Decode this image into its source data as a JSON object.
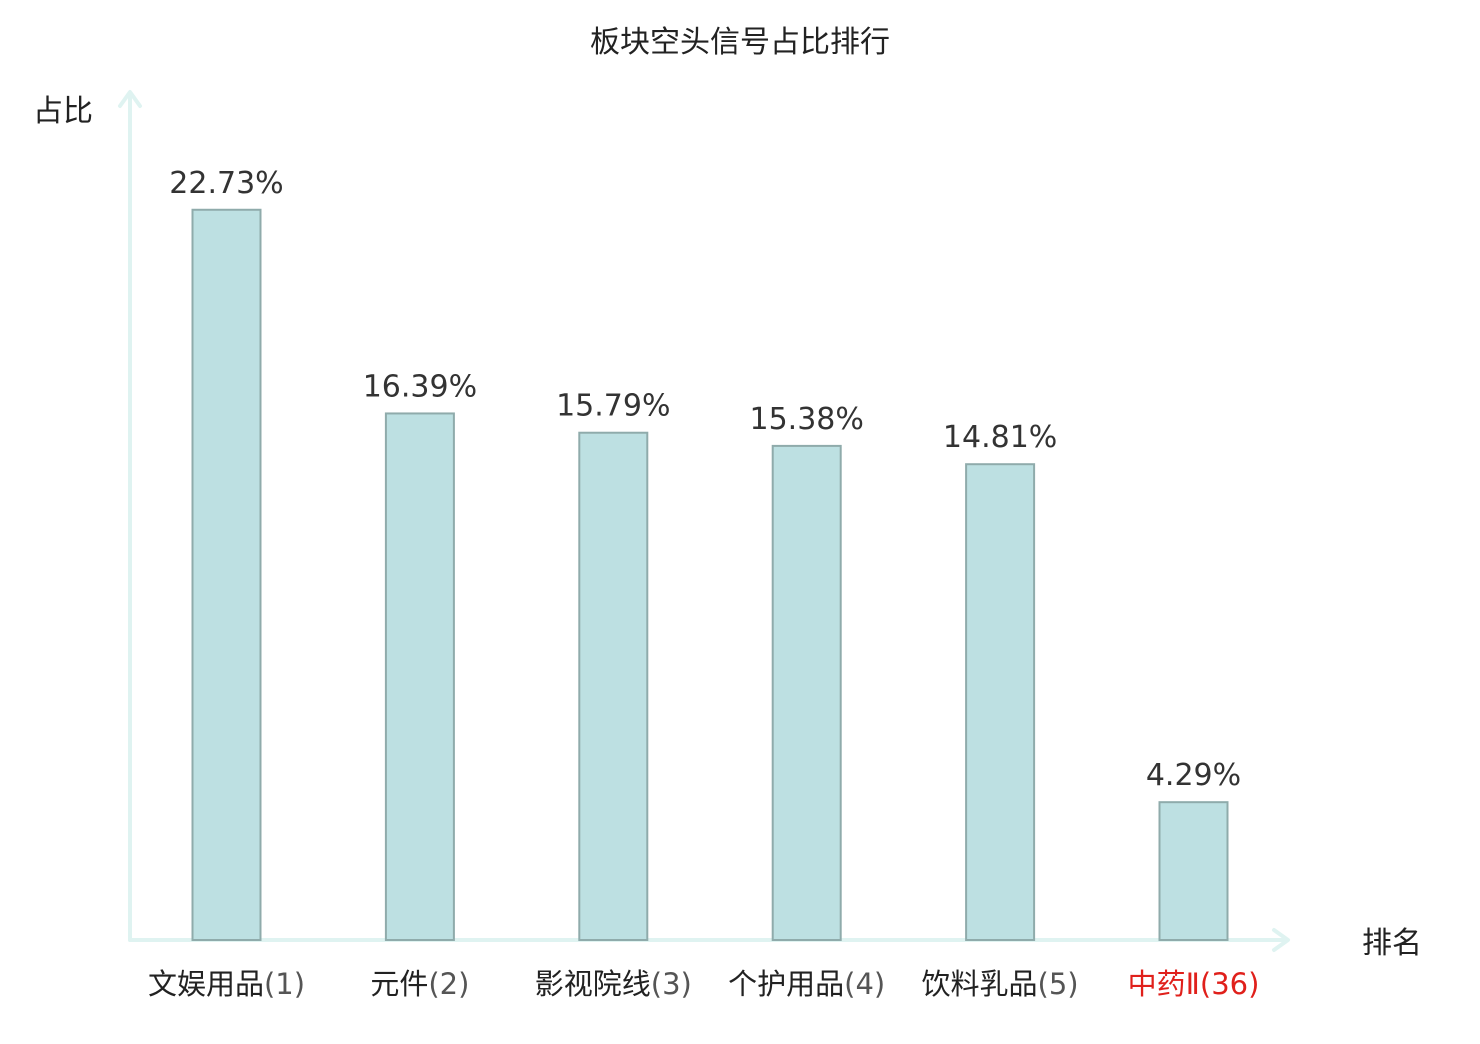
{
  "chart_data": {
    "type": "bar",
    "title": "板块空头信号占比排行",
    "ylabel": "占比",
    "xlabel": "排名",
    "categories": [
      "文娱用品",
      "元件",
      "影视院线",
      "个护用品",
      "饮料乳品",
      "中药Ⅱ"
    ],
    "ranks": [
      "(1)",
      "(2)",
      "(3)",
      "(4)",
      "(5)",
      "(36)"
    ],
    "values": [
      22.73,
      16.39,
      15.79,
      15.38,
      14.81,
      4.29
    ],
    "value_labels": [
      "22.73%",
      "16.39%",
      "15.79%",
      "15.38%",
      "14.81%",
      "4.29%"
    ],
    "highlight_index": 5,
    "ylim": [
      0,
      24.03
    ],
    "grid": false,
    "legend": "none"
  },
  "colors": {
    "bar_fill": "#bde0e2",
    "bar_stroke": "#8fabab",
    "axis": "#dff3f1",
    "label_text": "#333333",
    "category_text": "#222222",
    "highlight_text": "#e0201b",
    "rank_text": "#555555"
  }
}
